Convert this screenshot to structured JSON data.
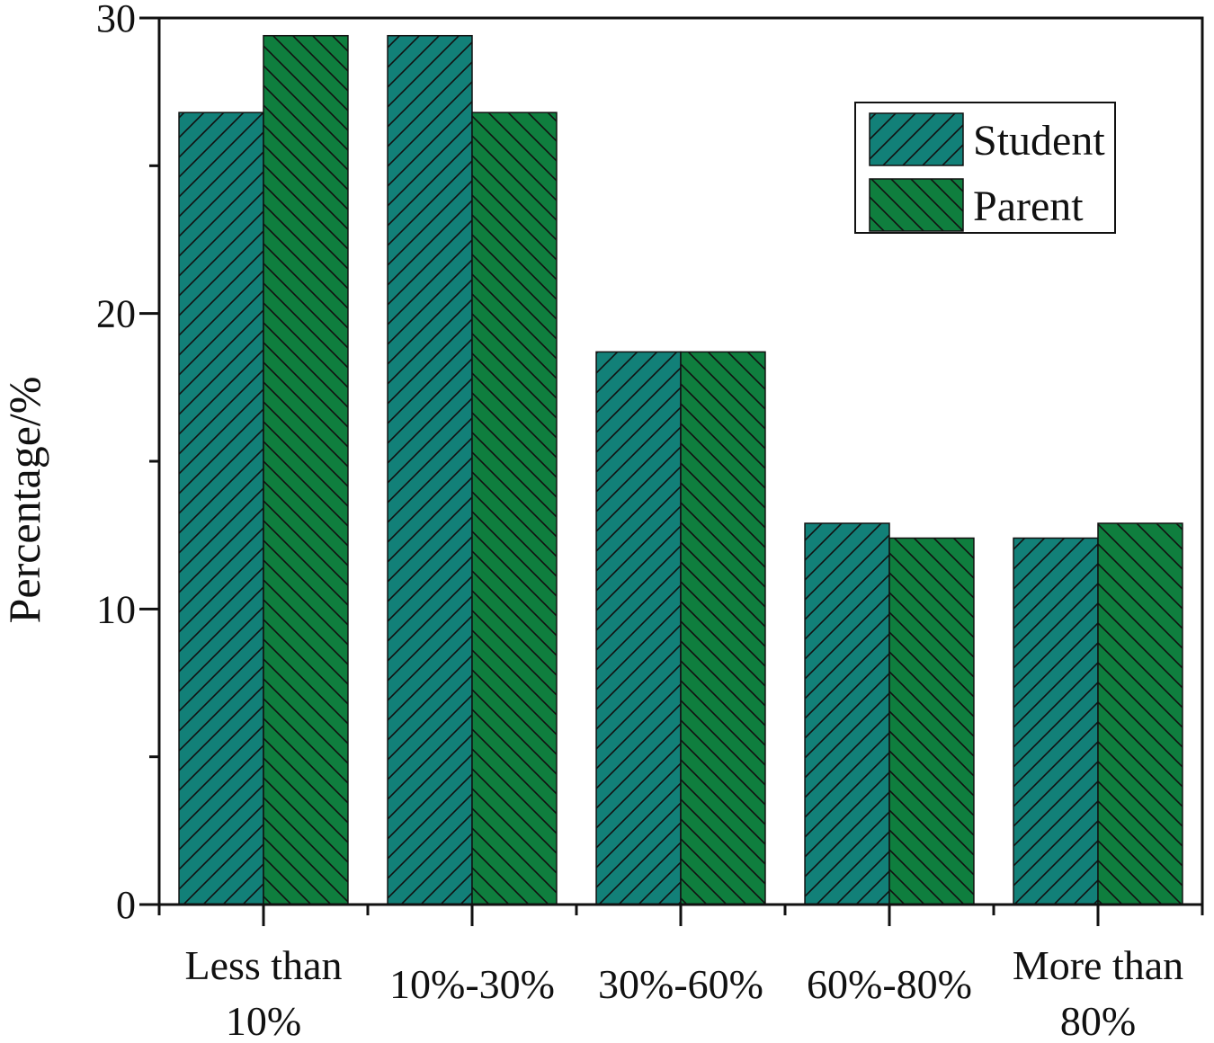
{
  "chart_data": {
    "type": "bar",
    "categories": [
      [
        "Less than",
        "10%"
      ],
      [
        "10%-30%"
      ],
      [
        "30%-60%"
      ],
      [
        "60%-80%"
      ],
      [
        "More than",
        "80%"
      ]
    ],
    "series": [
      {
        "name": "Student",
        "values": [
          26.8,
          29.4,
          18.7,
          12.9,
          12.4
        ],
        "color": "#128078",
        "hatch": "forward"
      },
      {
        "name": "Parent",
        "values": [
          29.4,
          26.8,
          18.7,
          12.4,
          12.9
        ],
        "color": "#0F7E3E",
        "hatch": "back"
      }
    ],
    "ylabel": "Percentage/%",
    "ylim": [
      0,
      30
    ],
    "yticks": [
      0,
      10,
      20,
      30
    ],
    "yticks_minor": [
      5,
      15,
      25
    ],
    "grid": false,
    "legend_position": "top-right"
  }
}
